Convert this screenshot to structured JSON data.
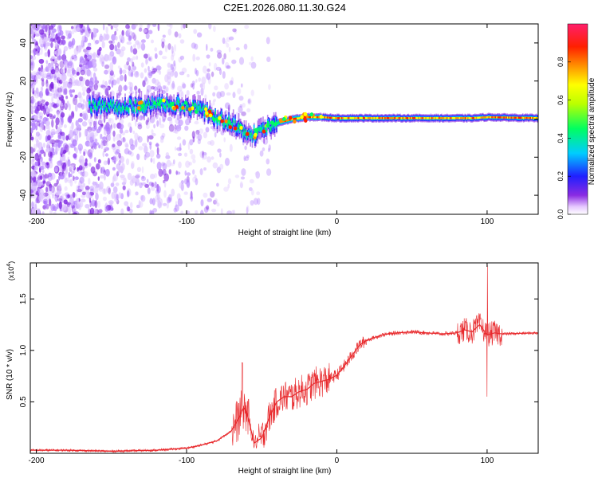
{
  "title": "C2E1.2026.080.11.30.G24",
  "chart_data": [
    {
      "type": "heatmap",
      "name": "spectrogram",
      "xlabel": "Height of straight line (km)",
      "ylabel": "Frequency (Hz)",
      "xlim": [
        -204,
        134
      ],
      "ylim": [
        -50,
        50
      ],
      "xticks": [
        -200,
        -100,
        0,
        100
      ],
      "yticks": [
        -40,
        -20,
        0,
        20,
        40
      ],
      "colorbar": {
        "label": "Normalized spectral amplitude",
        "range": [
          0,
          1
        ],
        "ticks": [
          "0.0",
          "0.2",
          "0.4",
          "0.6",
          "0.8"
        ],
        "tick_values": [
          0,
          0.2,
          0.4,
          0.6,
          0.8
        ]
      },
      "ridge": {
        "description": "dominant frequency vs height",
        "x": [
          -160,
          -130,
          -115,
          -100,
          -90,
          -80,
          -70,
          -60,
          -55,
          -50,
          -45,
          -40,
          -30,
          -20,
          -10,
          0,
          50,
          90,
          100,
          134
        ],
        "y": [
          7,
          7,
          8,
          7,
          5,
          1,
          -3,
          -7,
          -8,
          -5,
          -4,
          -2,
          0,
          1,
          1,
          0.5,
          0.5,
          0.5,
          1,
          0.5
        ]
      }
    },
    {
      "type": "line",
      "name": "snr",
      "xlabel": "Height of straight line (km)",
      "ylabel": "SNR (10 * v/v)",
      "multiplier_label": "(x10",
      "multiplier_exp": "4",
      "multiplier_close": ")",
      "xlim": [
        -204,
        134
      ],
      "ylim": [
        0,
        1.85
      ],
      "xticks": [
        -200,
        -100,
        0,
        100
      ],
      "yticks": [
        "0.5",
        "1.0",
        "1.5"
      ],
      "ytick_values": [
        0.5,
        1.0,
        1.5
      ],
      "color": "#e8292c",
      "series": {
        "name": "SNR",
        "x": [
          -204,
          -180,
          -150,
          -120,
          -100,
          -90,
          -80,
          -70,
          -65,
          -62,
          -60,
          -55,
          -50,
          -45,
          -40,
          -35,
          -30,
          -25,
          -20,
          -15,
          -10,
          -5,
          0,
          5,
          10,
          15,
          20,
          30,
          40,
          50,
          60,
          70,
          80,
          85,
          90,
          95,
          100,
          105,
          110,
          134
        ],
        "y": [
          0.03,
          0.03,
          0.02,
          0.03,
          0.05,
          0.08,
          0.12,
          0.22,
          0.35,
          0.45,
          0.4,
          0.1,
          0.15,
          0.35,
          0.5,
          0.55,
          0.55,
          0.6,
          0.62,
          0.68,
          0.7,
          0.72,
          0.76,
          0.85,
          0.95,
          1.05,
          1.1,
          1.15,
          1.17,
          1.18,
          1.17,
          1.16,
          1.17,
          1.2,
          1.18,
          1.25,
          1.15,
          1.17,
          1.16,
          1.17
        ]
      },
      "extremes": [
        {
          "x": -63,
          "y": 0.88
        },
        {
          "x": 100,
          "y": 1.83
        },
        {
          "x": 100,
          "y": 0.55
        }
      ]
    }
  ]
}
